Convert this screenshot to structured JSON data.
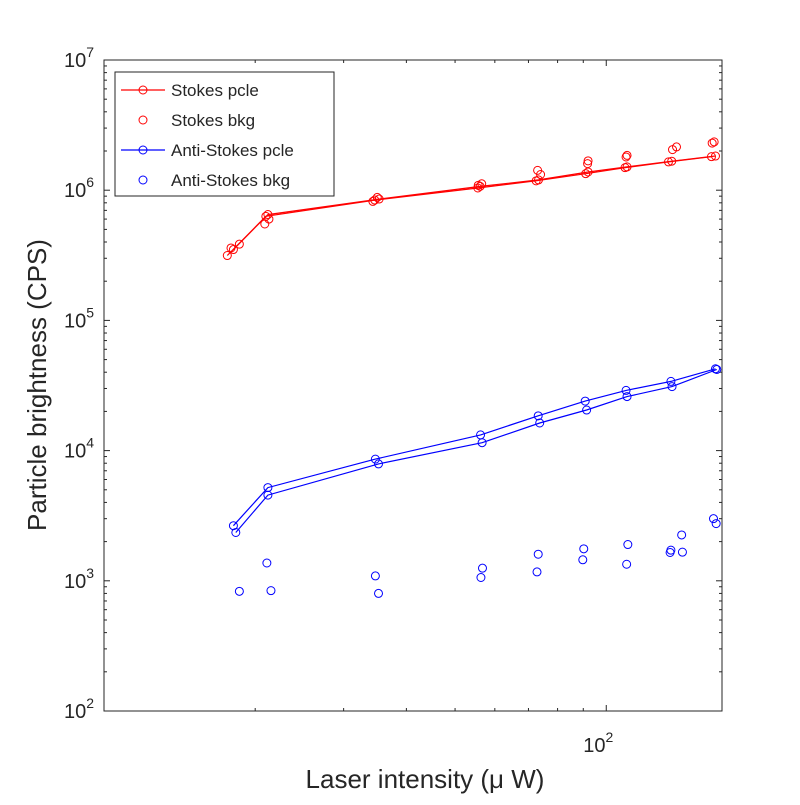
{
  "chart_data": {
    "type": "scatter",
    "title": "",
    "xlabel": "Laser intensity (μ W)",
    "ylabel": "Particle brightness (CPS)",
    "xscale": "log",
    "yscale": "log",
    "xlim": [
      10,
      170
    ],
    "ylim": [
      100,
      10000000
    ],
    "x_ticks": [
      {
        "base": "10",
        "exp": "2",
        "value": 100
      }
    ],
    "y_ticks": [
      {
        "base": "10",
        "exp": "2",
        "value": 100
      },
      {
        "base": "10",
        "exp": "3",
        "value": 1000
      },
      {
        "base": "10",
        "exp": "4",
        "value": 10000
      },
      {
        "base": "10",
        "exp": "5",
        "value": 100000
      },
      {
        "base": "10",
        "exp": "6",
        "value": 1000000
      },
      {
        "base": "10",
        "exp": "7",
        "value": 10000000
      }
    ],
    "grid": false,
    "legend_position": "top-left",
    "series": [
      {
        "name": "Stokes pcle",
        "color": "#ff0000",
        "style": "line-marker",
        "lines": [
          [
            [
              17.6,
              315000
            ],
            [
              21,
              630000
            ],
            [
              34.6,
              840000
            ],
            [
              55.5,
              1040000
            ],
            [
              72.5,
              1180000
            ],
            [
              91,
              1340000
            ],
            [
              109,
              1490000
            ],
            [
              133,
              1650000
            ],
            [
              162,
              1810000
            ]
          ],
          [
            [
              18.1,
              350000
            ],
            [
              21.2,
              650000
            ],
            [
              35.3,
              855000
            ],
            [
              56.1,
              1070000
            ],
            [
              73.3,
              1200000
            ],
            [
              92,
              1380000
            ],
            [
              110,
              1510000
            ],
            [
              135,
              1670000
            ],
            [
              165,
              1830000
            ]
          ]
        ]
      },
      {
        "name": "Stokes bkg",
        "color": "#ff0000",
        "style": "marker",
        "points": [
          [
            18.6,
            385000
          ],
          [
            20.9,
            550000
          ],
          [
            21.3,
            600000
          ],
          [
            35,
            880000
          ],
          [
            56.5,
            1120000
          ],
          [
            73,
            1420000
          ],
          [
            92,
            1680000
          ],
          [
            110,
            1850000
          ],
          [
            138,
            2150000
          ],
          [
            164,
            2350000
          ],
          [
            17.9,
            360000
          ],
          [
            34.3,
            820000
          ],
          [
            55.6,
            1090000
          ],
          [
            74,
            1320000
          ],
          [
            91.8,
            1600000
          ],
          [
            109.5,
            1800000
          ],
          [
            135.5,
            2050000
          ],
          [
            162.5,
            2300000
          ]
        ]
      },
      {
        "name": "Anti-Stokes pcle",
        "color": "#0000ff",
        "style": "line-marker",
        "lines": [
          [
            [
              18.1,
              2650
            ],
            [
              21.2,
              5200
            ],
            [
              34.7,
              8600
            ],
            [
              56.2,
              13200
            ],
            [
              73.2,
              18500
            ],
            [
              90.8,
              24000
            ],
            [
              109.5,
              29000
            ],
            [
              134.5,
              34000
            ],
            [
              165,
              42500
            ]
          ],
          [
            [
              18.3,
              2350
            ],
            [
              21.2,
              4550
            ],
            [
              35.2,
              7900
            ],
            [
              56.6,
              11500
            ],
            [
              73.7,
              16300
            ],
            [
              91.4,
              20500
            ],
            [
              110,
              26000
            ],
            [
              135.2,
              31000
            ],
            [
              166,
              42000
            ]
          ]
        ]
      },
      {
        "name": "Anti-Stokes bkg",
        "color": "#0000ff",
        "style": "marker",
        "points": [
          [
            18.6,
            830
          ],
          [
            21.1,
            1370
          ],
          [
            21.5,
            840
          ],
          [
            34.7,
            1090
          ],
          [
            35.2,
            800
          ],
          [
            56.7,
            1250
          ],
          [
            56.3,
            1060
          ],
          [
            73.2,
            1600
          ],
          [
            72.8,
            1170
          ],
          [
            90.2,
            1760
          ],
          [
            89.8,
            1450
          ],
          [
            110.4,
            1900
          ],
          [
            109.8,
            1340
          ],
          [
            134,
            1650
          ],
          [
            134.5,
            1720
          ],
          [
            141.8,
            1660
          ],
          [
            141.3,
            2250
          ],
          [
            163.5,
            3000
          ],
          [
            165.5,
            2750
          ]
        ]
      }
    ]
  }
}
